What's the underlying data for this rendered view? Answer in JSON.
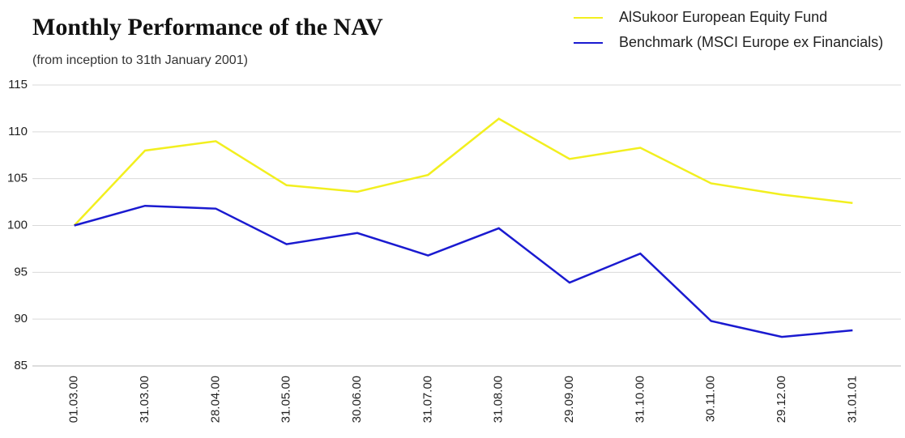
{
  "chart_data": {
    "type": "line",
    "title": "Monthly Performance of the NAV",
    "subtitle": "(from inception to 31th January 2001)",
    "categories": [
      "01.03.00",
      "31.03.00",
      "28.04.00",
      "31.05.00",
      "30.06.00",
      "31.07.00",
      "31.08.00",
      "29.09.00",
      "31.10.00",
      "30.11.00",
      "29.12.00",
      "31.01.01"
    ],
    "series": [
      {
        "name": "AlSukoor European Equity Fund",
        "color": "#f2ef1f",
        "values": [
          100,
          108,
          109,
          104.3,
          103.6,
          105.4,
          111.4,
          107.1,
          108.3,
          104.5,
          103.3,
          102.4
        ]
      },
      {
        "name": "Benchmark (MSCI Europe ex Financials)",
        "color": "#1a1ad0",
        "values": [
          100,
          102.1,
          101.8,
          98,
          99.2,
          96.8,
          99.7,
          93.9,
          97,
          89.8,
          88.1,
          88.8
        ]
      }
    ],
    "ylim": [
      85,
      115
    ],
    "yticks": [
      85,
      90,
      95,
      100,
      105,
      110,
      115
    ],
    "grid": true,
    "legend": "top-right"
  }
}
